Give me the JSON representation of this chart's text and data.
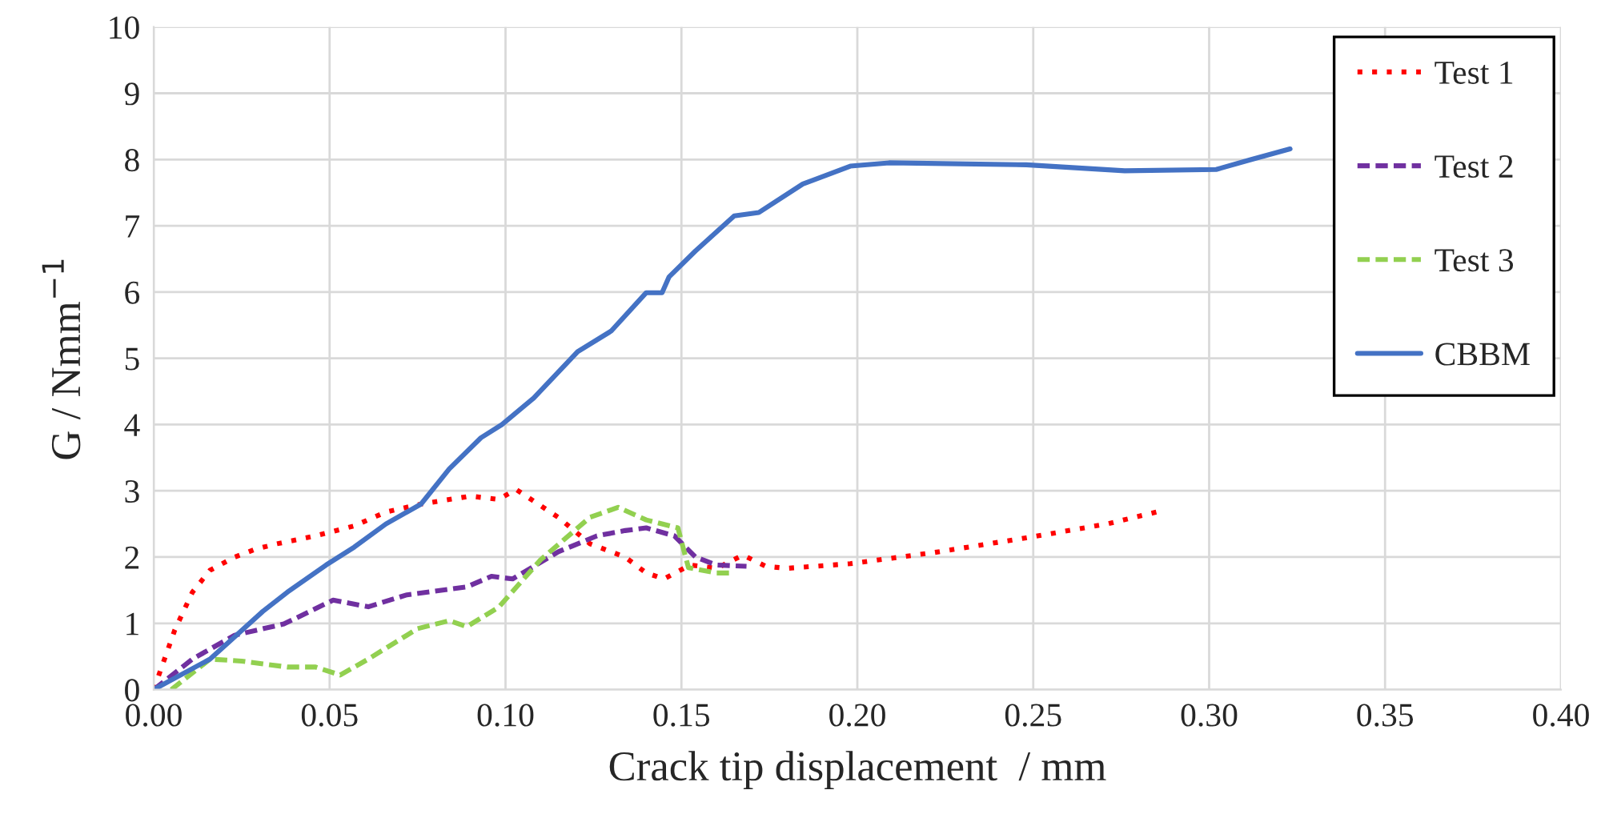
{
  "chart_data": {
    "type": "line",
    "xlabel": "Crack tip displacement  / mm",
    "ylabel": "G / Nmm$^{−1}$",
    "xlim": [
      0,
      0.4
    ],
    "ylim": [
      0,
      10
    ],
    "xticks": [
      {
        "value": 0,
        "label": "0.00"
      },
      {
        "value": 0.05,
        "label": "0.05"
      },
      {
        "value": 0.1,
        "label": "0.10"
      },
      {
        "value": 0.15,
        "label": "0.15"
      },
      {
        "value": 0.2,
        "label": "0.20"
      },
      {
        "value": 0.25,
        "label": "0.25"
      },
      {
        "value": 0.3,
        "label": "0.30"
      },
      {
        "value": 0.35,
        "label": "0.35"
      },
      {
        "value": 0.4,
        "label": "0.40"
      }
    ],
    "yticks": [
      0,
      1,
      2,
      3,
      4,
      5,
      6,
      7,
      8,
      9,
      10
    ],
    "grid": true,
    "legend": "top right",
    "series": [
      {
        "name": "Test 1",
        "color": "#ff0000",
        "line_style": "dotted",
        "x": [
          0,
          0.006,
          0.011,
          0.016,
          0.023,
          0.029,
          0.035,
          0.046,
          0.057,
          0.066,
          0.076,
          0.09,
          0.098,
          0.103,
          0.115,
          0.124,
          0.134,
          0.14,
          0.145,
          0.1525,
          0.16,
          0.1675,
          0.174,
          0.18,
          0.198,
          0.222,
          0.248,
          0.271,
          0.285
        ],
        "values": [
          0,
          0.9,
          1.47,
          1.8,
          2.0,
          2.12,
          2.2,
          2.32,
          2.47,
          2.68,
          2.8,
          2.92,
          2.87,
          3.02,
          2.6,
          2.2,
          2.0,
          1.76,
          1.67,
          1.88,
          1.83,
          2.03,
          1.86,
          1.83,
          1.9,
          2.07,
          2.29,
          2.5,
          2.68
        ]
      },
      {
        "name": "Test 2",
        "color": "#7030a0",
        "line_style": "dashed",
        "x": [
          0,
          0.011,
          0.023,
          0.037,
          0.051,
          0.061,
          0.072,
          0.089,
          0.096,
          0.102,
          0.115,
          0.126,
          0.134,
          0.14,
          0.148,
          0.154,
          0.16,
          0.1685
        ],
        "values": [
          0,
          0.46,
          0.82,
          0.99,
          1.35,
          1.25,
          1.43,
          1.55,
          1.71,
          1.67,
          2.08,
          2.32,
          2.4,
          2.44,
          2.32,
          2.0,
          1.88,
          1.86
        ]
      },
      {
        "name": "Test 3",
        "color": "#92d050",
        "line_style": "dashed",
        "x": [
          0.005,
          0.016,
          0.025,
          0.038,
          0.046,
          0.053,
          0.061,
          0.075,
          0.084,
          0.089,
          0.098,
          0.11,
          0.124,
          0.132,
          0.14,
          0.149,
          0.152,
          0.16,
          0.165
        ],
        "values": [
          0,
          0.46,
          0.43,
          0.34,
          0.34,
          0.22,
          0.46,
          0.92,
          1.04,
          0.95,
          1.24,
          1.96,
          2.6,
          2.75,
          2.56,
          2.44,
          1.84,
          1.76,
          1.76
        ]
      },
      {
        "name": "CBBM",
        "color": "#4472c4",
        "line_style": "solid",
        "x": [
          0,
          0.016,
          0.031,
          0.038,
          0.049,
          0.057,
          0.066,
          0.076,
          0.084,
          0.093,
          0.099,
          0.108,
          0.1205,
          0.13,
          0.14,
          0.1445,
          0.1465,
          0.154,
          0.165,
          0.172,
          0.1845,
          0.198,
          0.209,
          0.248,
          0.276,
          0.302,
          0.312,
          0.323
        ],
        "values": [
          0,
          0.46,
          1.18,
          1.47,
          1.88,
          2.15,
          2.5,
          2.8,
          3.33,
          3.8,
          4.0,
          4.4,
          5.1,
          5.41,
          5.99,
          5.99,
          6.23,
          6.62,
          7.15,
          7.2,
          7.63,
          7.9,
          7.95,
          7.92,
          7.83,
          7.85,
          8.0,
          8.16
        ]
      }
    ]
  }
}
